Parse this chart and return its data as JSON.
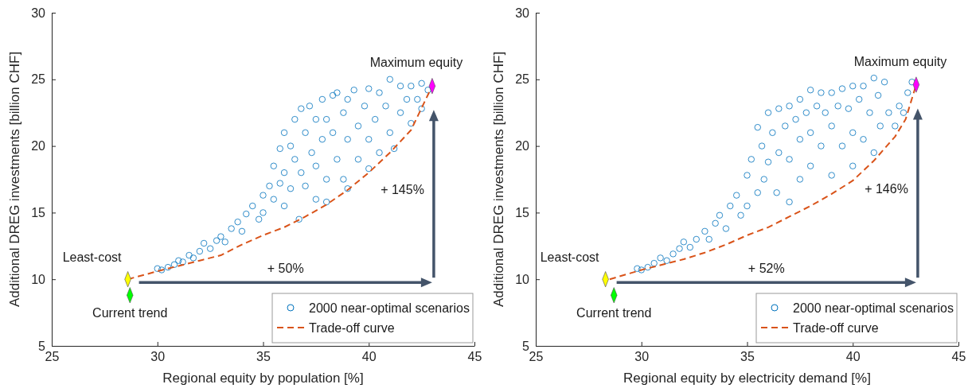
{
  "chart_data": [
    {
      "type": "scatter",
      "xlabel": "Regional equity by population [%]",
      "ylabel": "Additional DREG investments [billion CHF]",
      "xlim": [
        25,
        45
      ],
      "xticks": [
        25,
        30,
        35,
        40,
        45
      ],
      "ylim": [
        5,
        30
      ],
      "yticks": [
        5,
        10,
        15,
        20,
        25,
        30
      ],
      "grid": false,
      "legend": "bottom right",
      "series": [
        {
          "name": "2000 near-optimal scenarios",
          "type": "scatter",
          "marker": "circle",
          "color": "#0072bd",
          "x": [
            30.0,
            30.2,
            30.5,
            30.8,
            31.0,
            31.2,
            31.5,
            31.7,
            32.0,
            32.2,
            32.5,
            32.8,
            33.0,
            33.2,
            33.5,
            33.8,
            34.0,
            34.2,
            34.5,
            34.8,
            35.0,
            35.0,
            35.3,
            35.5,
            35.5,
            35.8,
            35.8,
            36.0,
            36.0,
            36.0,
            36.3,
            36.3,
            36.5,
            36.5,
            36.8,
            36.8,
            36.7,
            37.0,
            37.0,
            37.2,
            37.3,
            37.5,
            37.5,
            37.5,
            37.8,
            37.8,
            38.0,
            38.0,
            38.0,
            38.3,
            38.3,
            38.5,
            38.5,
            38.8,
            38.8,
            39.0,
            39.0,
            39.0,
            39.3,
            39.5,
            39.5,
            39.8,
            40.0,
            40.0,
            40.0,
            40.3,
            40.5,
            40.5,
            40.8,
            41.0,
            41.0,
            41.2,
            41.5,
            41.5,
            41.8,
            42.0,
            42.0,
            42.3,
            42.5,
            42.5,
            42.8
          ],
          "values": [
            10.8,
            10.7,
            10.9,
            11.1,
            11.4,
            11.3,
            11.8,
            11.6,
            12.1,
            12.7,
            12.3,
            12.9,
            13.2,
            12.8,
            13.8,
            14.3,
            13.6,
            14.9,
            15.5,
            14.5,
            16.3,
            15.0,
            17.0,
            18.5,
            16.0,
            19.8,
            17.2,
            21.0,
            18.0,
            15.5,
            20.0,
            16.8,
            22.0,
            19.0,
            22.8,
            18.0,
            14.5,
            21.0,
            17.0,
            23.0,
            19.5,
            22.0,
            18.5,
            16.0,
            23.5,
            20.5,
            22.0,
            17.5,
            15.8,
            23.8,
            21.0,
            19.0,
            24.0,
            22.5,
            17.5,
            23.5,
            20.5,
            16.8,
            24.2,
            21.5,
            19.0,
            23.0,
            24.3,
            20.5,
            18.3,
            22.0,
            24.0,
            19.5,
            23.0,
            25.0,
            21.0,
            19.8,
            24.5,
            22.5,
            23.5,
            24.5,
            21.7,
            23.5,
            24.7,
            22.8,
            24.2
          ]
        },
        {
          "name": "Trade-off curve",
          "type": "line",
          "line_style": "dashed",
          "marker": "none",
          "color": "#d95319",
          "x": [
            28.6,
            30,
            31,
            32,
            33,
            34,
            35,
            36,
            37,
            38,
            39,
            40,
            41,
            42,
            43
          ],
          "values": [
            10.0,
            10.6,
            11.0,
            11.4,
            11.8,
            12.6,
            13.3,
            13.9,
            14.7,
            15.6,
            16.7,
            18.0,
            19.5,
            21.2,
            24.5
          ]
        },
        {
          "type": "scatter",
          "marker": "diamond",
          "color": "#ffff00",
          "x": [
            28.6
          ],
          "values": [
            10.0
          ]
        },
        {
          "type": "scatter",
          "marker": "diamond",
          "color": "#00ff00",
          "x": [
            28.7
          ],
          "values": [
            8.8
          ]
        },
        {
          "type": "scatter",
          "marker": "diamond",
          "color": "#ff00ff",
          "x": [
            43.0
          ],
          "values": [
            24.5
          ]
        }
      ],
      "annotations": [
        {
          "text": "Least-cost",
          "x": 28.6,
          "y": 10.0
        },
        {
          "text": "Current trend",
          "x": 28.7,
          "y": 8.8
        },
        {
          "text": "Maximum equity",
          "x": 43.0,
          "y": 24.5
        },
        "+ 50%",
        "+ 145%"
      ]
    },
    {
      "type": "scatter",
      "xlabel": "Regional equity by electricity demand [%]",
      "ylabel": "Additional DREG investments [billion CHF]",
      "xlim": [
        25,
        45
      ],
      "xticks": [
        25,
        30,
        35,
        40,
        45
      ],
      "ylim": [
        5,
        30
      ],
      "yticks": [
        5,
        10,
        15,
        20,
        25,
        30
      ],
      "grid": false,
      "legend": "bottom right",
      "series": [
        {
          "name": "2000 near-optimal scenarios",
          "type": "scatter",
          "marker": "circle",
          "color": "#0072bd",
          "x": [
            29.8,
            30.0,
            30.3,
            30.6,
            30.9,
            31.2,
            31.5,
            31.8,
            32.0,
            32.3,
            32.6,
            33.0,
            33.2,
            33.5,
            33.7,
            34.0,
            34.2,
            34.5,
            34.7,
            35.0,
            35.0,
            35.2,
            35.5,
            35.5,
            35.7,
            35.8,
            36.0,
            36.0,
            36.2,
            36.4,
            36.5,
            36.5,
            36.8,
            37.0,
            37.0,
            37.0,
            37.3,
            37.5,
            37.5,
            37.5,
            37.8,
            38.0,
            38.0,
            38.0,
            38.3,
            38.5,
            38.5,
            38.7,
            39.0,
            39.0,
            39.0,
            39.3,
            39.5,
            39.5,
            39.8,
            40.0,
            40.0,
            40.0,
            40.3,
            40.5,
            40.5,
            40.8,
            41.0,
            41.0,
            41.2,
            41.3,
            41.5,
            41.7,
            42.0,
            42.2,
            42.4,
            42.6,
            42.8
          ],
          "values": [
            10.8,
            10.7,
            10.9,
            11.2,
            11.6,
            11.4,
            11.9,
            12.3,
            12.8,
            12.4,
            13.0,
            13.6,
            13.0,
            14.2,
            14.8,
            13.8,
            15.5,
            16.3,
            14.8,
            17.8,
            15.5,
            19.0,
            21.4,
            16.5,
            20.0,
            17.5,
            22.5,
            18.8,
            21.0,
            16.5,
            22.8,
            19.5,
            21.5,
            23.0,
            19.0,
            15.8,
            22.0,
            23.5,
            20.5,
            17.5,
            22.5,
            24.2,
            21.0,
            18.5,
            23.0,
            24.0,
            20.0,
            22.5,
            24.0,
            21.5,
            17.8,
            23.0,
            24.3,
            20.0,
            22.8,
            24.5,
            21.0,
            18.5,
            23.5,
            24.5,
            20.5,
            22.5,
            25.1,
            19.5,
            23.8,
            21.5,
            24.8,
            22.5,
            21.5,
            23.0,
            22.5,
            24.0,
            24.8
          ]
        },
        {
          "name": "Trade-off curve",
          "type": "line",
          "line_style": "dashed",
          "marker": "none",
          "color": "#d95319",
          "x": [
            28.5,
            30,
            31,
            32,
            33,
            34,
            35,
            36,
            37,
            38,
            39,
            40,
            41,
            42,
            42.5,
            43
          ],
          "values": [
            10.0,
            10.7,
            11.1,
            11.5,
            12.0,
            12.6,
            13.3,
            13.9,
            14.7,
            15.5,
            16.4,
            17.4,
            18.9,
            20.7,
            22.0,
            24.6
          ]
        },
        {
          "type": "scatter",
          "marker": "diamond",
          "color": "#ffff00",
          "x": [
            28.3
          ],
          "values": [
            10.0
          ]
        },
        {
          "type": "scatter",
          "marker": "diamond",
          "color": "#00ff00",
          "x": [
            28.7
          ],
          "values": [
            8.8
          ]
        },
        {
          "type": "scatter",
          "marker": "diamond",
          "color": "#ff00ff",
          "x": [
            43.0
          ],
          "values": [
            24.6
          ]
        }
      ],
      "annotations": [
        {
          "text": "Least-cost",
          "x": 28.3,
          "y": 10.0
        },
        {
          "text": "Current trend",
          "x": 28.7,
          "y": 8.8
        },
        {
          "text": "Maximum equity",
          "x": 43.0,
          "y": 24.6
        },
        "+ 52%",
        "+ 146%"
      ]
    }
  ]
}
